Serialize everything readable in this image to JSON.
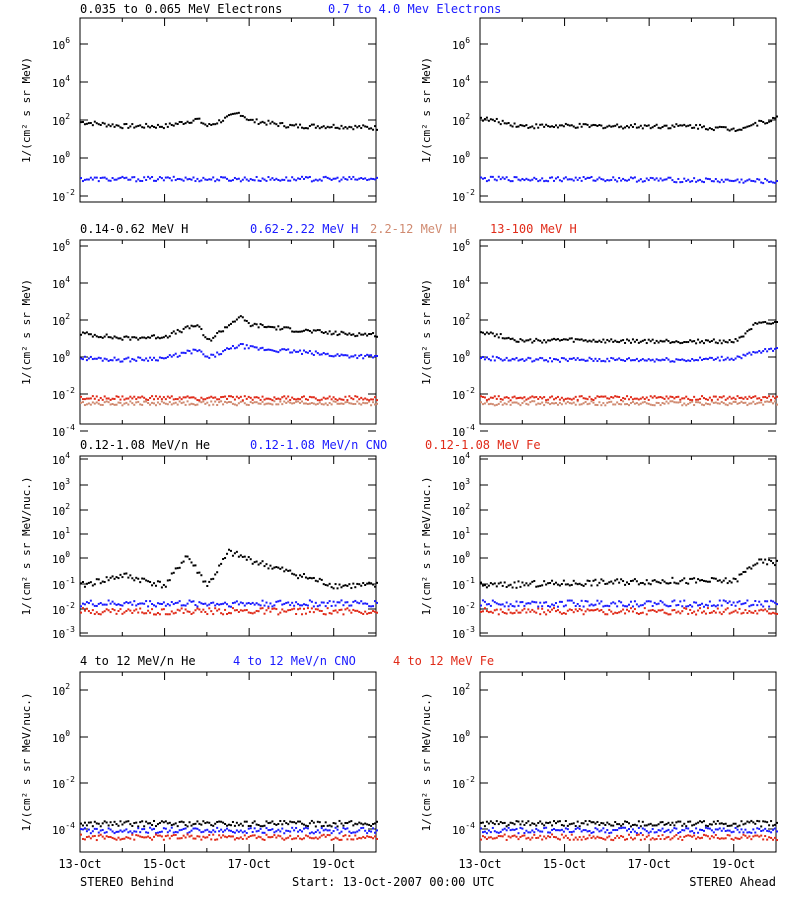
{
  "panel_rows": [
    {
      "titles": [
        {
          "text": "0.035 to 0.065 MeV Electrons",
          "color": "#000000"
        },
        {
          "text": "0.7 to 4.0 Mev Electrons",
          "color": "#1a1aff"
        }
      ],
      "ylabel": "1/(cm² s sr MeV)",
      "tick_labels": [
        {
          "base": "10",
          "exp": "6"
        },
        {
          "base": "10",
          "exp": "4"
        },
        {
          "base": "10",
          "exp": "2"
        },
        {
          "base": "10",
          "exp": "0"
        },
        {
          "base": "10",
          "exp": "-2"
        }
      ]
    },
    {
      "titles": [
        {
          "text": "0.14-0.62 MeV H",
          "color": "#000000"
        },
        {
          "text": "0.62-2.22 MeV H",
          "color": "#1a1aff"
        },
        {
          "text": "2.2-12 MeV H",
          "color": "#d08a70"
        },
        {
          "text": "13-100 MeV H",
          "color": "#e02a18"
        }
      ],
      "ylabel": "1/(cm² s sr MeV)",
      "tick_labels": [
        {
          "base": "10",
          "exp": "6"
        },
        {
          "base": "10",
          "exp": "4"
        },
        {
          "base": "10",
          "exp": "2"
        },
        {
          "base": "10",
          "exp": "0"
        },
        {
          "base": "10",
          "exp": "-2"
        },
        {
          "base": "10",
          "exp": "-4"
        }
      ]
    },
    {
      "titles": [
        {
          "text": "0.12-1.08 MeV/n He",
          "color": "#000000"
        },
        {
          "text": "0.12-1.08 MeV/n CNO",
          "color": "#1a1aff"
        },
        {
          "text": "0.12-1.08 MeV Fe",
          "color": "#e02a18"
        }
      ],
      "ylabel": "1/(cm² s sr MeV/nuc.)",
      "tick_labels": [
        {
          "base": "10",
          "exp": "4"
        },
        {
          "base": "10",
          "exp": "3"
        },
        {
          "base": "10",
          "exp": "2"
        },
        {
          "base": "10",
          "exp": "1"
        },
        {
          "base": "10",
          "exp": "0"
        },
        {
          "base": "10",
          "exp": "-1"
        },
        {
          "base": "10",
          "exp": "-2"
        },
        {
          "base": "10",
          "exp": "-3"
        }
      ]
    },
    {
      "titles": [
        {
          "text": "4 to 12 MeV/n He",
          "color": "#000000"
        },
        {
          "text": "4 to 12 MeV/n CNO",
          "color": "#1a1aff"
        },
        {
          "text": "4 to 12 MeV Fe",
          "color": "#e02a18"
        }
      ],
      "ylabel": "1/(cm² s sr MeV/nuc.)",
      "tick_labels": [
        {
          "base": "10",
          "exp": "2"
        },
        {
          "base": "10",
          "exp": "0"
        },
        {
          "base": "10",
          "exp": "-2"
        },
        {
          "base": "10",
          "exp": "-4"
        }
      ]
    }
  ],
  "x_tick_labels": [
    "13-Oct",
    "15-Oct",
    "17-Oct",
    "19-Oct"
  ],
  "footer": {
    "left": "STEREO Behind",
    "center": "Start: 13-Oct-2007 00:00 UTC",
    "right": "STEREO Ahead"
  },
  "chart_data": [
    {
      "type": "scatter",
      "spacecraft": "STEREO Behind",
      "x_range": [
        "2007-10-13",
        "2007-10-20"
      ],
      "ylim": [
        0.001,
        10000000
      ],
      "y_scale": "log",
      "series": [
        {
          "name": "0.035 to 0.065 MeV Electrons",
          "color": "#000000",
          "x": [
            "2007-10-13",
            "2007-10-14",
            "2007-10-15",
            "2007-10-15T18",
            "2007-10-16",
            "2007-10-16T18",
            "2007-10-17",
            "2007-10-18",
            "2007-10-19",
            "2007-10-20"
          ],
          "y": [
            25,
            15,
            15,
            35,
            15,
            80,
            30,
            15,
            15,
            12
          ]
        },
        {
          "name": "0.7 to 4.0 Mev Electrons",
          "color": "#1a1aff",
          "x": [
            "2007-10-13",
            "2007-10-16",
            "2007-10-20"
          ],
          "y": [
            0.02,
            0.02,
            0.02
          ]
        }
      ]
    },
    {
      "type": "scatter",
      "spacecraft": "STEREO Ahead",
      "x_range": [
        "2007-10-13",
        "2007-10-20"
      ],
      "ylim": [
        0.001,
        10000000
      ],
      "y_scale": "log",
      "series": [
        {
          "name": "0.035 to 0.065 MeV Electrons",
          "color": "#000000",
          "x": [
            "2007-10-13",
            "2007-10-14",
            "2007-10-16",
            "2007-10-18",
            "2007-10-19",
            "2007-10-20"
          ],
          "y": [
            40,
            15,
            15,
            15,
            10,
            40
          ]
        },
        {
          "name": "0.7 to 4.0 Mev Electrons",
          "color": "#1a1aff",
          "x": [
            "2007-10-13",
            "2007-10-16",
            "2007-10-20"
          ],
          "y": [
            0.02,
            0.02,
            0.015
          ]
        }
      ]
    },
    {
      "type": "scatter",
      "spacecraft": "STEREO Behind",
      "x_range": [
        "2007-10-13",
        "2007-10-20"
      ],
      "ylim": [
        1e-05,
        1000000
      ],
      "y_scale": "log",
      "series": [
        {
          "name": "0.14-0.62 MeV H",
          "color": "#000000",
          "x": [
            "2007-10-13",
            "2007-10-14",
            "2007-10-15",
            "2007-10-15T18",
            "2007-10-16",
            "2007-10-16T18",
            "2007-10-17",
            "2007-10-18",
            "2007-10-19",
            "2007-10-20"
          ],
          "y": [
            3,
            1.5,
            2,
            10,
            1,
            30,
            10,
            5,
            3,
            2.5
          ]
        },
        {
          "name": "0.62-2.22 MeV H",
          "color": "#1a1aff",
          "x": [
            "2007-10-13",
            "2007-10-14",
            "2007-10-15",
            "2007-10-15T18",
            "2007-10-16",
            "2007-10-16T18",
            "2007-10-17",
            "2007-10-18",
            "2007-10-19",
            "2007-10-20"
          ],
          "y": [
            0.1,
            0.08,
            0.1,
            0.3,
            0.1,
            0.6,
            0.4,
            0.25,
            0.15,
            0.12
          ]
        },
        {
          "name": "2.2-12 MeV H",
          "color": "#d08a70",
          "x": [
            "2007-10-13",
            "2007-10-20"
          ],
          "y": [
            0.0002,
            0.0002
          ]
        },
        {
          "name": "13-100 MeV H",
          "color": "#e02a18",
          "x": [
            "2007-10-13",
            "2007-10-20"
          ],
          "y": [
            0.0004,
            0.0004
          ]
        }
      ]
    },
    {
      "type": "scatter",
      "spacecraft": "STEREO Ahead",
      "x_range": [
        "2007-10-13",
        "2007-10-20"
      ],
      "ylim": [
        1e-05,
        1000000
      ],
      "y_scale": "log",
      "series": [
        {
          "name": "0.14-0.62 MeV H",
          "color": "#000000",
          "x": [
            "2007-10-13",
            "2007-10-14",
            "2007-10-15",
            "2007-10-16",
            "2007-10-18",
            "2007-10-19",
            "2007-10-19T12",
            "2007-10-20"
          ],
          "y": [
            4,
            1,
            1.2,
            1,
            1,
            1,
            10,
            12
          ]
        },
        {
          "name": "0.62-2.22 MeV H",
          "color": "#1a1aff",
          "x": [
            "2007-10-13",
            "2007-10-14",
            "2007-10-16",
            "2007-10-18",
            "2007-10-19",
            "2007-10-20"
          ],
          "y": [
            0.1,
            0.08,
            0.08,
            0.08,
            0.1,
            0.4
          ]
        },
        {
          "name": "2.2-12 MeV H",
          "color": "#d08a70",
          "x": [
            "2007-10-13",
            "2007-10-20"
          ],
          "y": [
            0.0002,
            0.0002
          ]
        },
        {
          "name": "13-100 MeV H",
          "color": "#e02a18",
          "x": [
            "2007-10-13",
            "2007-10-20"
          ],
          "y": [
            0.0004,
            0.0004
          ]
        }
      ]
    },
    {
      "type": "scatter",
      "spacecraft": "STEREO Behind",
      "x_range": [
        "2007-10-13",
        "2007-10-20"
      ],
      "ylim": [
        0.001,
        10000
      ],
      "y_scale": "log",
      "series": [
        {
          "name": "0.12-1.08 MeV/n He",
          "color": "#000000",
          "x": [
            "2007-10-13",
            "2007-10-14",
            "2007-10-15",
            "2007-10-15T12",
            "2007-10-16",
            "2007-10-16T12",
            "2007-10-17",
            "2007-10-18",
            "2007-10-19",
            "2007-10-20"
          ],
          "y": [
            0.1,
            0.25,
            0.1,
            1.5,
            0.1,
            2,
            1,
            0.3,
            0.1,
            0.1
          ]
        },
        {
          "name": "0.12-1.08 MeV/n CNO",
          "color": "#1a1aff",
          "x": [
            "2007-10-13",
            "2007-10-20"
          ],
          "y": [
            0.02,
            0.02
          ]
        },
        {
          "name": "0.12-1.08 MeV Fe",
          "color": "#e02a18",
          "x": [
            "2007-10-13",
            "2007-10-20"
          ],
          "y": [
            0.01,
            0.01
          ]
        }
      ]
    },
    {
      "type": "scatter",
      "spacecraft": "STEREO Ahead",
      "x_range": [
        "2007-10-13",
        "2007-10-20"
      ],
      "ylim": [
        0.001,
        10000
      ],
      "y_scale": "log",
      "series": [
        {
          "name": "0.12-1.08 MeV/n He",
          "color": "#000000",
          "x": [
            "2007-10-13",
            "2007-10-17",
            "2007-10-19",
            "2007-10-19T12",
            "2007-10-20"
          ],
          "y": [
            0.1,
            0.15,
            0.15,
            0.8,
            0.8
          ]
        },
        {
          "name": "0.12-1.08 MeV/n CNO",
          "color": "#1a1aff",
          "x": [
            "2007-10-13",
            "2007-10-20"
          ],
          "y": [
            0.02,
            0.02
          ]
        },
        {
          "name": "0.12-1.08 MeV Fe",
          "color": "#e02a18",
          "x": [
            "2007-10-13",
            "2007-10-20"
          ],
          "y": [
            0.01,
            0.01
          ]
        }
      ]
    },
    {
      "type": "scatter",
      "spacecraft": "STEREO Behind",
      "x_range": [
        "2007-10-13",
        "2007-10-20"
      ],
      "ylim": [
        1e-05,
        1000
      ],
      "y_scale": "log",
      "series": [
        {
          "name": "4 to 12 MeV/n He",
          "color": "#000000",
          "x": [
            "2007-10-13",
            "2007-10-20"
          ],
          "y": [
            0.0002,
            0.0002
          ]
        },
        {
          "name": "4 to 12 MeV/n CNO",
          "color": "#1a1aff",
          "x": [
            "2007-10-13",
            "2007-10-20"
          ],
          "y": [
            0.0001,
            0.0001
          ]
        },
        {
          "name": "4 to 12 MeV Fe",
          "color": "#e02a18",
          "x": [
            "2007-10-13",
            "2007-10-20"
          ],
          "y": [
            5e-05,
            5e-05
          ]
        }
      ]
    },
    {
      "type": "scatter",
      "spacecraft": "STEREO Ahead",
      "x_range": [
        "2007-10-13",
        "2007-10-20"
      ],
      "ylim": [
        1e-05,
        1000
      ],
      "y_scale": "log",
      "series": [
        {
          "name": "4 to 12 MeV/n He",
          "color": "#000000",
          "x": [
            "2007-10-13",
            "2007-10-20"
          ],
          "y": [
            0.0002,
            0.0002
          ]
        },
        {
          "name": "4 to 12 MeV/n CNO",
          "color": "#1a1aff",
          "x": [
            "2007-10-13",
            "2007-10-20"
          ],
          "y": [
            0.0001,
            0.0001
          ]
        },
        {
          "name": "4 to 12 MeV Fe",
          "color": "#e02a18",
          "x": [
            "2007-10-13",
            "2007-10-20"
          ],
          "y": [
            5e-05,
            5e-05
          ]
        }
      ]
    }
  ]
}
